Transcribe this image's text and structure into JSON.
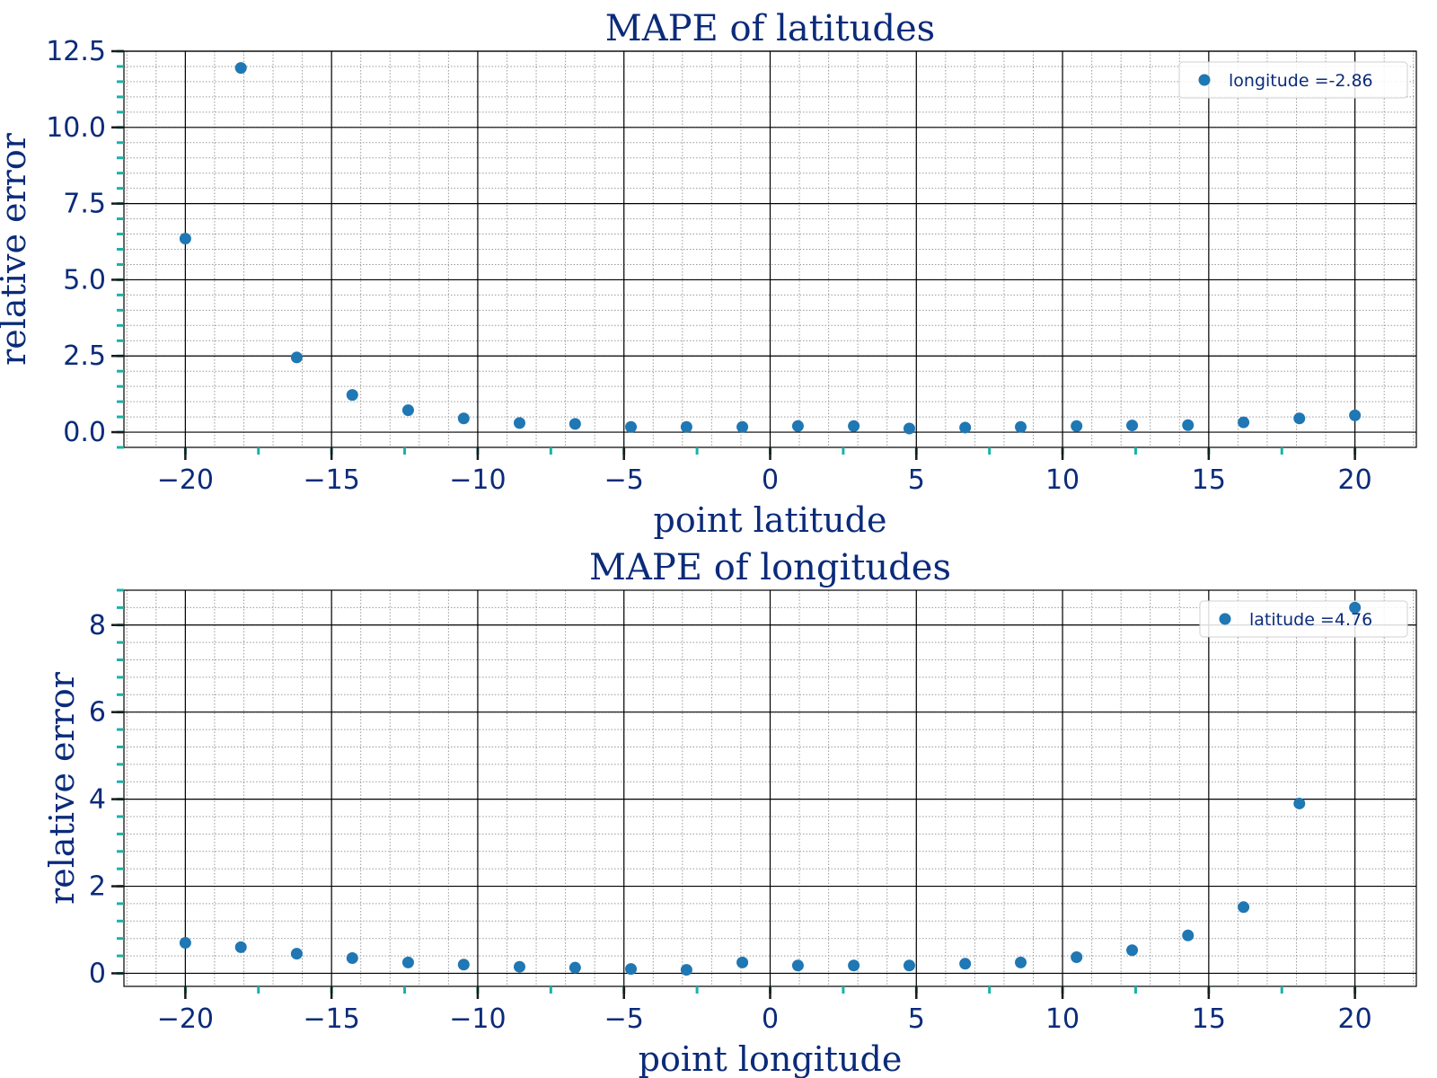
{
  "chart_data": [
    {
      "type": "scatter",
      "title": "MAPE of latitudes",
      "xlabel": "point latitude",
      "ylabel": "relative error",
      "xlim": [
        -22.1,
        22.1
      ],
      "ylim": [
        -0.5,
        12.5
      ],
      "xticks": [
        -20,
        -15,
        -10,
        -5,
        0,
        5,
        10,
        15,
        20
      ],
      "xtick_labels": [
        "−20",
        "−15",
        "−10",
        "−5",
        "0",
        "5",
        "10",
        "15",
        "20"
      ],
      "yticks": [
        0.0,
        2.5,
        5.0,
        7.5,
        10.0,
        12.5
      ],
      "ytick_labels": [
        "0.0",
        "2.5",
        "5.0",
        "7.5",
        "10.0",
        "12.5"
      ],
      "grid": true,
      "legend_position": "top-right",
      "series": [
        {
          "name": "longitude =-2.86",
          "color": "#1f77b4",
          "x": [
            -20.0,
            -18.1,
            -16.19,
            -14.29,
            -12.38,
            -10.48,
            -8.57,
            -6.67,
            -4.76,
            -2.86,
            -0.95,
            0.95,
            2.86,
            4.76,
            6.67,
            8.57,
            10.48,
            12.38,
            14.29,
            16.19,
            18.1,
            20.0
          ],
          "y": [
            6.35,
            11.95,
            2.45,
            1.22,
            0.72,
            0.45,
            0.3,
            0.27,
            0.17,
            0.17,
            0.17,
            0.2,
            0.2,
            0.12,
            0.15,
            0.17,
            0.2,
            0.22,
            0.23,
            0.32,
            0.45,
            0.55
          ]
        }
      ]
    },
    {
      "type": "scatter",
      "title": "MAPE of longitudes",
      "xlabel": "point longitude",
      "ylabel": "relative error",
      "xlim": [
        -22.1,
        22.1
      ],
      "ylim": [
        -0.3,
        8.8
      ],
      "xticks": [
        -20,
        -15,
        -10,
        -5,
        0,
        5,
        10,
        15,
        20
      ],
      "xtick_labels": [
        "−20",
        "−15",
        "−10",
        "−5",
        "0",
        "5",
        "10",
        "15",
        "20"
      ],
      "yticks": [
        0,
        2,
        4,
        6,
        8
      ],
      "ytick_labels": [
        "0",
        "2",
        "4",
        "6",
        "8"
      ],
      "grid": true,
      "legend_position": "top-right",
      "series": [
        {
          "name": "latitude =4.76",
          "color": "#1f77b4",
          "x": [
            -20.0,
            -18.1,
            -16.19,
            -14.29,
            -12.38,
            -10.48,
            -8.57,
            -6.67,
            -4.76,
            -2.86,
            -0.95,
            0.95,
            2.86,
            4.76,
            6.67,
            8.57,
            10.48,
            12.38,
            14.29,
            16.19,
            18.1,
            20.0
          ],
          "y": [
            0.7,
            0.6,
            0.45,
            0.35,
            0.25,
            0.2,
            0.15,
            0.13,
            0.1,
            0.08,
            0.25,
            0.18,
            0.18,
            0.18,
            0.22,
            0.25,
            0.37,
            0.53,
            0.87,
            1.52,
            3.9,
            8.4
          ]
        }
      ]
    }
  ]
}
